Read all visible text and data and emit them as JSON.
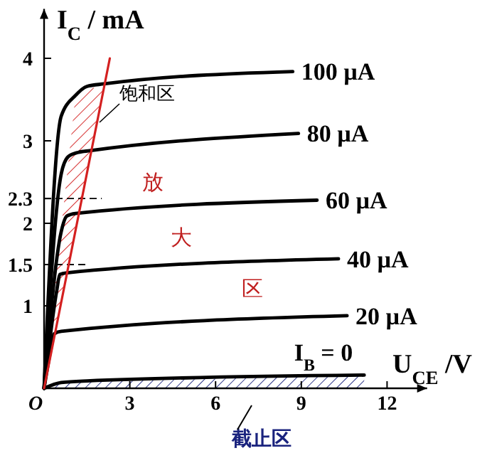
{
  "chart_data": {
    "type": "line",
    "ylabel": "I$_{C}$ / mA",
    "xlabel": "U$_{CE}$ /V",
    "xlim": [
      0,
      13.4
    ],
    "ylim": [
      0,
      4.6
    ],
    "xticks": [
      {
        "value": 0,
        "label": "O"
      },
      3,
      6,
      9,
      12
    ],
    "yticks": [
      1,
      1.5,
      2,
      2.3,
      3,
      4
    ],
    "grid": false,
    "legend": false,
    "marker": "none",
    "series": [
      {
        "name": "100 µA",
        "color": "#000000",
        "x": [
          0,
          0.6,
          1.1,
          1.5,
          2.1,
          8.7
        ],
        "values": [
          0,
          3.3,
          3.55,
          3.66,
          3.69,
          3.84
        ]
      },
      {
        "name": "80 µA",
        "color": "#000000",
        "x": [
          0,
          0.6,
          0.85,
          1.2,
          1.6,
          8.9
        ],
        "values": [
          0,
          2.6,
          2.81,
          2.86,
          2.88,
          3.09
        ]
      },
      {
        "name": "60 µA",
        "color": "#000000",
        "x": [
          0,
          0.6,
          0.8,
          1.1,
          9.55
        ],
        "values": [
          0,
          1.9,
          2.09,
          2.12,
          2.28
        ]
      },
      {
        "name": "40 µA",
        "color": "#000000",
        "x": [
          0,
          0.45,
          0.55,
          0.8,
          10.3
        ],
        "values": [
          0,
          1.2,
          1.38,
          1.4,
          1.57
        ]
      },
      {
        "name": "20 µA",
        "color": "#000000",
        "x": [
          0,
          0.25,
          0.35,
          0.6,
          10.6
        ],
        "values": [
          0,
          0.5,
          0.66,
          0.69,
          0.88
        ]
      },
      {
        "name": "I$_{B}$ = 0",
        "color": "#000000",
        "x": [
          0,
          0.6,
          1.5,
          11.2
        ],
        "values": [
          0,
          0.07,
          0.09,
          0.16
        ]
      },
      {
        "color": "#d42020",
        "x": [
          0,
          2.3
        ],
        "values": [
          0,
          4.0
        ]
      }
    ],
    "ref_lines": [
      {
        "axis": "y",
        "value": 2.3,
        "line_style": "dashed",
        "color": "#000000"
      },
      {
        "axis": "y",
        "value": 1.5,
        "line_style": "dashed",
        "color": "#000000"
      }
    ],
    "annotations": [
      "饱和区",
      "放",
      "大",
      "区",
      "截止区"
    ]
  }
}
